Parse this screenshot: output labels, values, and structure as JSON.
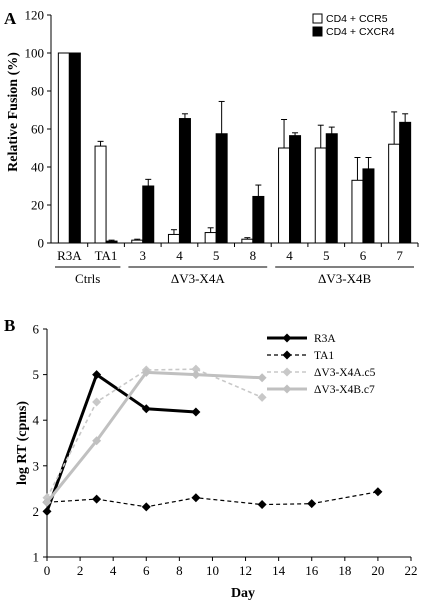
{
  "panels": {
    "a": {
      "label": "A"
    },
    "b": {
      "label": "B"
    }
  },
  "chart_data": [
    {
      "type": "bar",
      "ylabel": "Relative Fusion (%)",
      "xlabel": "",
      "ylim": [
        0,
        120
      ],
      "yticks": [
        0,
        20,
        40,
        60,
        80,
        100,
        120
      ],
      "categories": [
        "R3A",
        "TA1",
        "3",
        "4",
        "5",
        "8",
        "4",
        "5",
        "6",
        "7"
      ],
      "groups": [
        {
          "label": "Ctrls",
          "start": 0,
          "end": 1
        },
        {
          "label": "ΔV3-X4A",
          "start": 2,
          "end": 5
        },
        {
          "label": "ΔV3-X4B",
          "start": 6,
          "end": 9
        }
      ],
      "series": [
        {
          "name": "CD4 + CCR5",
          "color": "#ffffff",
          "values": [
            100,
            51,
            1.5,
            4.5,
            5.5,
            2,
            50,
            50,
            33,
            52
          ],
          "errors": [
            0,
            2.5,
            0.5,
            2.5,
            2.5,
            0.8,
            15,
            12,
            12,
            17
          ]
        },
        {
          "name": "CD4 + CXCR4",
          "color": "#000000",
          "values": [
            100,
            1,
            30,
            65.5,
            57.5,
            24.5,
            56.5,
            57.5,
            39,
            63.5
          ],
          "errors": [
            0,
            0.5,
            3.5,
            2.5,
            17,
            6,
            1.5,
            3.5,
            6,
            4.5
          ]
        }
      ],
      "legend": "top-right"
    },
    {
      "type": "line",
      "xlabel": "Day",
      "ylabel": "log RT (cpms)",
      "xlim": [
        0,
        22
      ],
      "ylim": [
        1,
        6
      ],
      "xticks": [
        0,
        2,
        4,
        6,
        8,
        10,
        12,
        14,
        16,
        18,
        20,
        22
      ],
      "yticks": [
        1,
        2,
        3,
        4,
        5,
        6
      ],
      "series": [
        {
          "name": "R3A",
          "color": "#000000",
          "style": "solid",
          "width": 3,
          "x": [
            0,
            3,
            6,
            9
          ],
          "y": [
            2.0,
            5.0,
            4.25,
            4.18
          ]
        },
        {
          "name": "TA1",
          "color": "#000000",
          "style": "dashed",
          "width": 1.2,
          "x": [
            0,
            3,
            6,
            9,
            13,
            16,
            20
          ],
          "y": [
            2.2,
            2.27,
            2.1,
            2.3,
            2.15,
            2.17,
            2.43
          ]
        },
        {
          "name": "ΔV3-X4A.c5",
          "color": "#c8c8c8",
          "style": "dashed",
          "width": 1.6,
          "x": [
            0,
            3,
            6,
            9,
            13
          ],
          "y": [
            2.3,
            4.4,
            5.1,
            5.12,
            4.5
          ]
        },
        {
          "name": "ΔV3-X4B.c7",
          "color": "#c0c0c0",
          "style": "solid",
          "width": 3,
          "x": [
            0,
            3,
            6,
            9,
            13
          ],
          "y": [
            2.2,
            3.55,
            5.05,
            5.0,
            4.93
          ]
        }
      ],
      "legend": "top-right"
    }
  ]
}
